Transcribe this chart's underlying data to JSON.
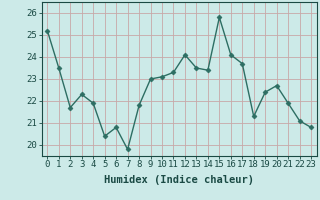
{
  "x": [
    0,
    1,
    2,
    3,
    4,
    5,
    6,
    7,
    8,
    9,
    10,
    11,
    12,
    13,
    14,
    15,
    16,
    17,
    18,
    19,
    20,
    21,
    22,
    23
  ],
  "y": [
    25.2,
    23.5,
    21.7,
    22.3,
    21.9,
    20.4,
    20.8,
    19.8,
    21.8,
    23.0,
    23.1,
    23.3,
    24.1,
    23.5,
    23.4,
    25.8,
    24.1,
    23.7,
    21.3,
    22.4,
    22.7,
    21.9,
    21.1,
    20.8
  ],
  "line_color": "#2d6e63",
  "marker": "D",
  "marker_size": 2.5,
  "bg_color": "#cceae8",
  "grid_color": "#c8a8a8",
  "xlabel": "Humidex (Indice chaleur)",
  "xlim": [
    -0.5,
    23.5
  ],
  "ylim": [
    19.5,
    26.5
  ],
  "yticks": [
    20,
    21,
    22,
    23,
    24,
    25,
    26
  ],
  "xticks": [
    0,
    1,
    2,
    3,
    4,
    5,
    6,
    7,
    8,
    9,
    10,
    11,
    12,
    13,
    14,
    15,
    16,
    17,
    18,
    19,
    20,
    21,
    22,
    23
  ],
  "tick_label_fontsize": 6.5,
  "xlabel_fontsize": 7.5,
  "line_width": 1.0,
  "text_color": "#1a4a44"
}
